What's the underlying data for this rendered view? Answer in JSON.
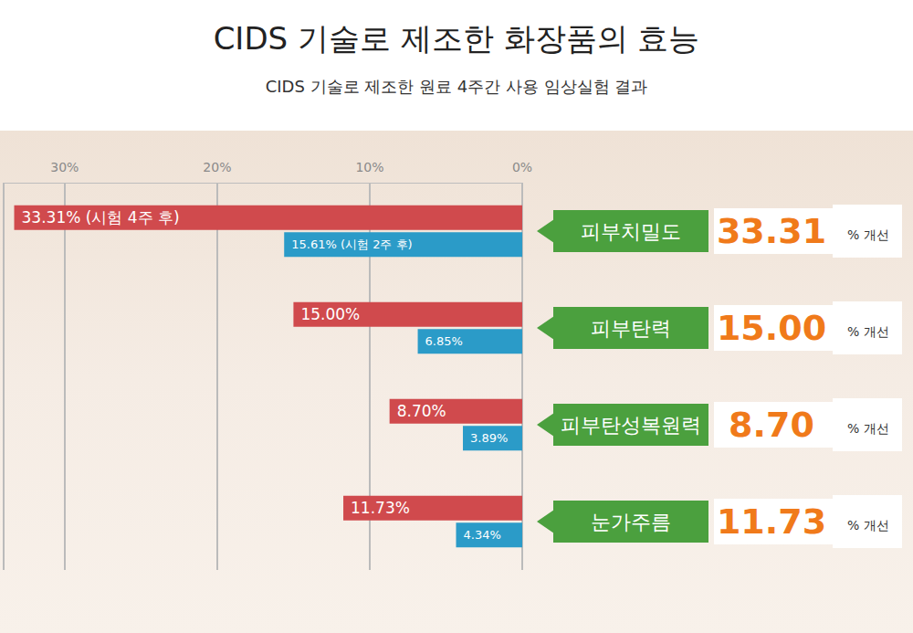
{
  "chart_data": {
    "type": "bar",
    "title": "CIDS 기술로 제조한 화장품의 효능",
    "subtitle": "CIDS 기술로 제조한 원료 4주간 사용 임상실험 결과",
    "orientation": "horizontal",
    "categories": [
      "피부치밀도",
      "피부탄력",
      "피부탄성복원력",
      "눈가주름"
    ],
    "series": [
      {
        "color": "#d04a4d",
        "values": [
          33.31,
          15.0,
          8.7,
          11.73
        ],
        "value_labels": [
          "33.31% (시험 4주 후)",
          "15.00%",
          "8.70%",
          "11.73%"
        ]
      },
      {
        "color": "#2b9bc8",
        "values": [
          15.61,
          6.85,
          3.89,
          4.34
        ],
        "value_labels": [
          "15.61% (시험 2주 후)",
          "6.85%",
          "3.89%",
          "4.34%"
        ]
      }
    ],
    "xlim": [
      0,
      34
    ],
    "xticks": [
      {
        "value": 0,
        "label": "0%"
      },
      {
        "value": 10,
        "label": "10%"
      },
      {
        "value": 20,
        "label": "20%"
      },
      {
        "value": 30,
        "label": "30%"
      }
    ],
    "grid": true,
    "data_labels": true,
    "annotations": {
      "improvement_values": [
        "33.31",
        "15.00",
        "8.70",
        "11.73"
      ],
      "improvement_unit": "% 개선"
    }
  }
}
